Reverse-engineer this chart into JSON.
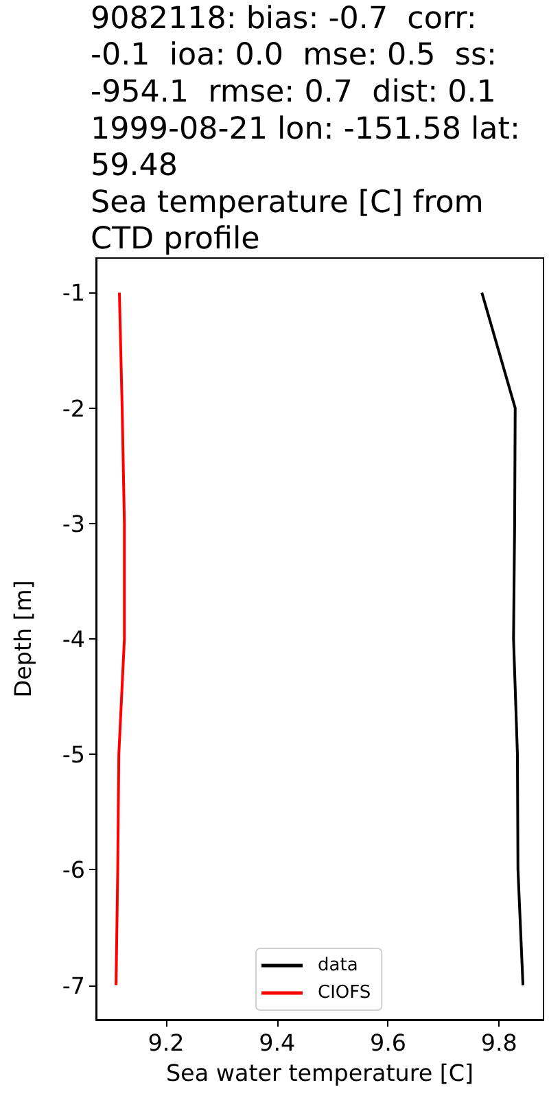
{
  "chart_data": {
    "type": "line",
    "title": "9082118: bias: -0.7  corr: -0.1  ioa: 0.0  mse: 0.5  ss: -954.1  rmse: 0.7  dist: 0.1\n1999-08-21 lon: -151.58 lat: 59.48\nSea temperature [C] from CTD profile",
    "xlabel": "Sea water temperature [C]",
    "ylabel": "Depth [m]",
    "series": [
      {
        "name": "data",
        "color": "#000000",
        "x": [
          9.769,
          9.829,
          9.828,
          9.826,
          9.833,
          9.834,
          9.843
        ],
        "values": [
          -1,
          -2,
          -3,
          -4,
          -5,
          -6,
          -7
        ]
      },
      {
        "name": "CIOFS",
        "color": "#ff0000",
        "x": [
          9.116,
          9.121,
          9.125,
          9.125,
          9.115,
          9.113,
          9.11
        ],
        "values": [
          -1,
          -2,
          -3,
          -4,
          -5,
          -6,
          -7
        ]
      }
    ],
    "xlim": [
      9.074,
      9.88
    ],
    "ylim": [
      -7.3,
      -0.7
    ],
    "xticks": [
      9.2,
      9.4,
      9.6,
      9.8
    ],
    "yticks": [
      -1,
      -2,
      -3,
      -4,
      -5,
      -6,
      -7
    ],
    "legend": "bottom",
    "marker": "none"
  }
}
